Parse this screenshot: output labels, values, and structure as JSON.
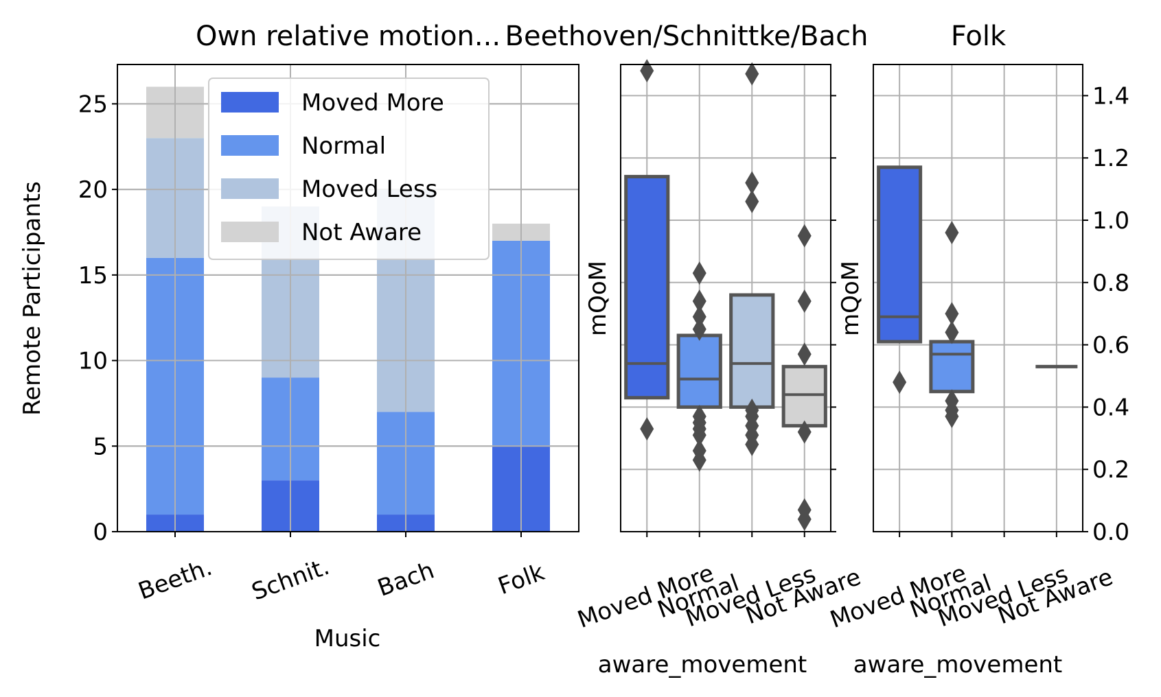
{
  "chart_data": [
    {
      "type": "bar",
      "stacked": true,
      "title": "Own relative motion...",
      "xlabel": "Music",
      "ylabel": "Remote Participants",
      "categories": [
        "Beeth.",
        "Schnit.",
        "Bach",
        "Folk"
      ],
      "ylim": [
        0,
        27.3
      ],
      "yticks": [
        0,
        5,
        10,
        15,
        20,
        25
      ],
      "grid": true,
      "legend": "upper-center",
      "series": [
        {
          "name": "Moved More",
          "color": "#4169E1",
          "values": [
            1,
            3,
            1,
            5
          ]
        },
        {
          "name": "Normal",
          "color": "#6495ED",
          "values": [
            15,
            6,
            6,
            12
          ]
        },
        {
          "name": "Moved Less",
          "color": "#B0C4DE",
          "values": [
            7,
            10,
            13,
            0
          ]
        },
        {
          "name": "Not Aware",
          "color": "#D3D3D3",
          "values": [
            3,
            0,
            0,
            1
          ]
        }
      ]
    },
    {
      "type": "box",
      "title": "Beethoven/Schnittke/Bach",
      "xlabel": "aware_movement",
      "ylabel": "mQoM",
      "categories": [
        "Moved More",
        "Normal",
        "Moved Less",
        "Not Aware"
      ],
      "ylim": [
        0,
        1.5
      ],
      "grid": true,
      "boxes": [
        {
          "category": "Moved More",
          "color": "#4169E1",
          "q1": 0.43,
          "median": 0.54,
          "q3": 1.14,
          "outliers": [
            0.33,
            1.48
          ]
        },
        {
          "category": "Normal",
          "color": "#6495ED",
          "q1": 0.4,
          "median": 0.49,
          "q3": 0.63,
          "outliers": [
            0.23,
            0.26,
            0.31,
            0.33,
            0.35,
            0.37,
            0.65,
            0.69,
            0.74,
            0.83
          ]
        },
        {
          "category": "Moved Less",
          "color": "#B0C4DE",
          "q1": 0.4,
          "median": 0.54,
          "q3": 0.76,
          "outliers": [
            0.28,
            0.31,
            0.34,
            0.37,
            0.39,
            1.06,
            1.12,
            1.47
          ]
        },
        {
          "category": "Not Aware",
          "color": "#D3D3D3",
          "q1": 0.34,
          "median": 0.44,
          "q3": 0.53,
          "outliers": [
            0.04,
            0.07,
            0.32,
            0.57,
            0.74,
            0.95
          ]
        }
      ]
    },
    {
      "type": "box",
      "title": "Folk",
      "xlabel": "aware_movement",
      "ylabel": "mQoM",
      "categories": [
        "Moved More",
        "Normal",
        "Moved Less",
        "Not Aware"
      ],
      "ylim": [
        0,
        1.5
      ],
      "yticks": [
        "0.0",
        "0.2",
        "0.4",
        "0.6",
        "0.8",
        "1.0",
        "1.2",
        "1.4"
      ],
      "grid": true,
      "boxes": [
        {
          "category": "Moved More",
          "color": "#4169E1",
          "q1": 0.61,
          "median": 0.69,
          "q3": 1.17,
          "outliers": [
            0.48
          ]
        },
        {
          "category": "Normal",
          "color": "#6495ED",
          "q1": 0.45,
          "median": 0.57,
          "q3": 0.61,
          "outliers": [
            0.37,
            0.39,
            0.42,
            0.64,
            0.7,
            0.96
          ]
        },
        {
          "category": "Not Aware",
          "color": "#D3D3D3",
          "median": 0.53
        }
      ]
    }
  ]
}
